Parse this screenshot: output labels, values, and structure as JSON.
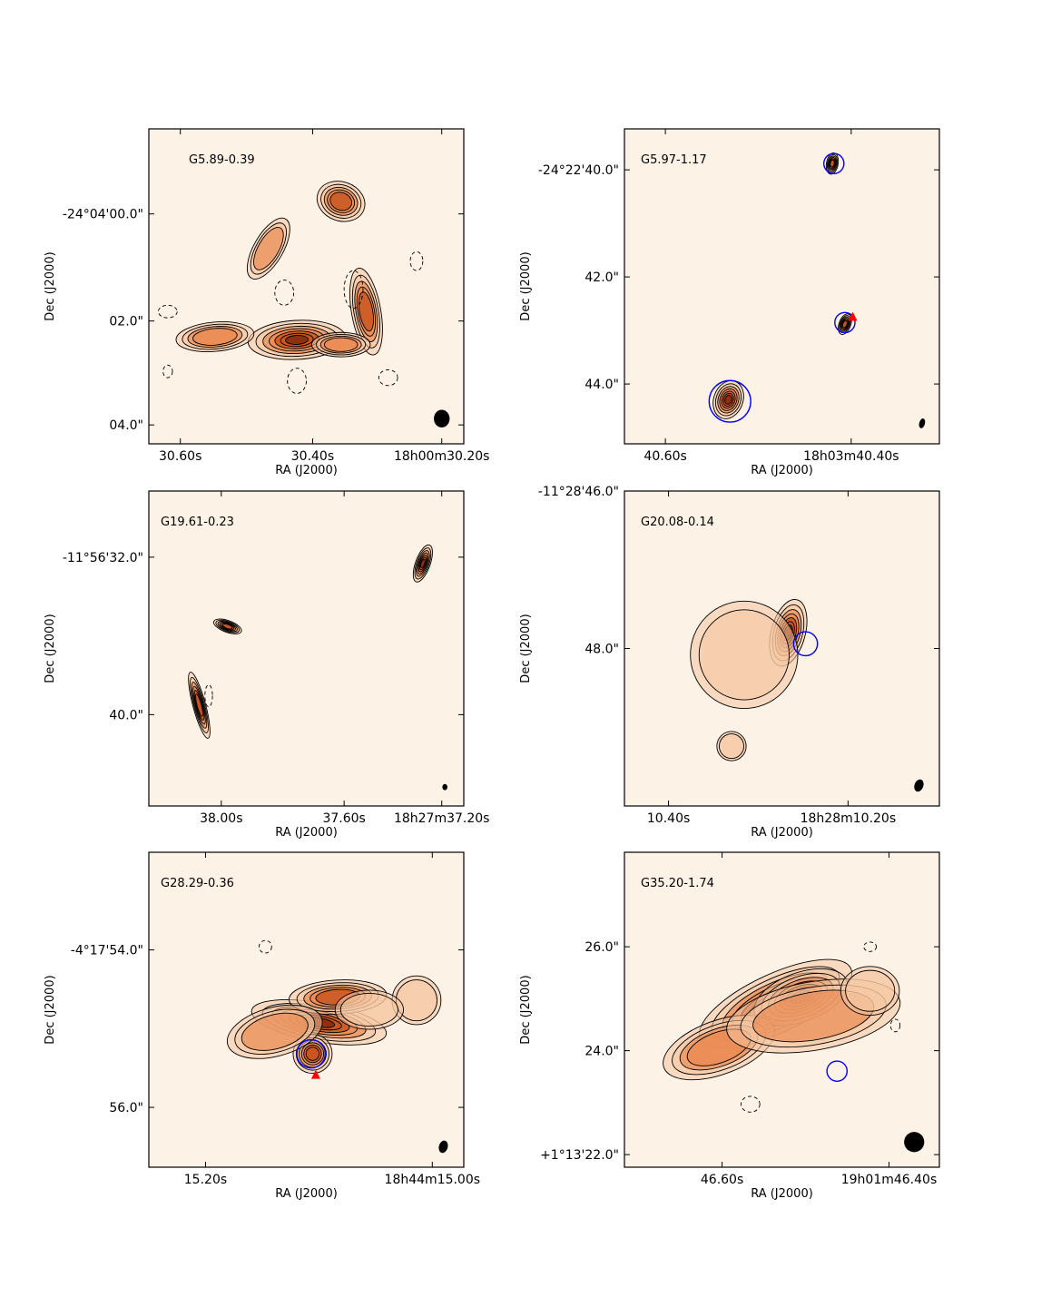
{
  "colors": {
    "background": "#fdf2e6",
    "emission_light": "#f6c7a2",
    "emission_mid": "#e9884f",
    "emission_strong": "#c9541e",
    "emission_peak": "#8a2e0c",
    "contour": "#000000",
    "maser_circle": "#0000ff",
    "marker_triangle": "#ff0000",
    "beam": "#000000"
  },
  "chart_data": [
    {
      "type": "image",
      "name": "G5.89-0.39",
      "xlabel": "RA (J2000)",
      "ylabel": "Dec (J2000)",
      "xticks": [
        "30.60s",
        "30.40s",
        "18h00m30.20s"
      ],
      "yticks": [
        "-24°04'00.0\"",
        "02.0\"",
        "04.0\""
      ],
      "blobs": [
        {
          "u": 0.47,
          "v": 0.67,
          "rx": 0.1,
          "ry": 0.04,
          "rot": -3,
          "peak": 0.95
        },
        {
          "u": 0.21,
          "v": 0.66,
          "rx": 0.08,
          "ry": 0.03,
          "rot": -5,
          "peak": 0.6
        },
        {
          "u": 0.69,
          "v": 0.58,
          "rx": 0.03,
          "ry": 0.09,
          "rot": -10,
          "peak": 0.65
        },
        {
          "u": 0.61,
          "v": 0.685,
          "rx": 0.06,
          "ry": 0.025,
          "rot": 0,
          "peak": 0.5
        },
        {
          "u": 0.61,
          "v": 0.23,
          "rx": 0.05,
          "ry": 0.04,
          "rot": 20,
          "peak": 0.75
        },
        {
          "u": 0.38,
          "v": 0.38,
          "rx": 0.03,
          "ry": 0.07,
          "rot": 30,
          "peak": 0.45
        }
      ],
      "dashed": [
        {
          "u": 0.43,
          "v": 0.52,
          "rx": 0.03,
          "ry": 0.04
        },
        {
          "u": 0.65,
          "v": 0.51,
          "rx": 0.03,
          "ry": 0.06
        },
        {
          "u": 0.47,
          "v": 0.8,
          "rx": 0.03,
          "ry": 0.04
        },
        {
          "u": 0.06,
          "v": 0.58,
          "rx": 0.03,
          "ry": 0.02
        },
        {
          "u": 0.76,
          "v": 0.79,
          "rx": 0.03,
          "ry": 0.025
        },
        {
          "u": 0.85,
          "v": 0.42,
          "rx": 0.02,
          "ry": 0.03
        },
        {
          "u": 0.06,
          "v": 0.77,
          "rx": 0.015,
          "ry": 0.02
        }
      ],
      "circles": [],
      "triangles": [],
      "beam": {
        "u": 0.93,
        "v": 0.92,
        "rx": 0.025,
        "ry": 0.028,
        "rot": 0
      }
    },
    {
      "type": "image",
      "name": "G5.97-1.17",
      "xlabel": "RA (J2000)",
      "ylabel": "Dec (J2000)",
      "xticks": [
        "40.60s",
        "18h03m40.40s"
      ],
      "yticks": [
        "-24°22'40.0\"",
        "42.0\"",
        "44.0\""
      ],
      "blobs": [
        {
          "u": 0.33,
          "v": 0.86,
          "rx": 0.03,
          "ry": 0.04,
          "rot": 20,
          "peak": 1.0
        },
        {
          "u": 0.7,
          "v": 0.62,
          "rx": 0.012,
          "ry": 0.022,
          "rot": 20,
          "peak": 0.8
        },
        {
          "u": 0.66,
          "v": 0.11,
          "rx": 0.012,
          "ry": 0.022,
          "rot": 10,
          "peak": 0.8
        }
      ],
      "dashed": [],
      "circles": [
        {
          "u": 0.335,
          "v": 0.865,
          "r": 0.066
        },
        {
          "u": 0.7,
          "v": 0.615,
          "r": 0.032
        },
        {
          "u": 0.665,
          "v": 0.11,
          "r": 0.032
        }
      ],
      "triangles": [
        {
          "u": 0.725,
          "v": 0.595
        }
      ],
      "beam": {
        "u": 0.945,
        "v": 0.935,
        "rx": 0.009,
        "ry": 0.016,
        "rot": 15
      }
    },
    {
      "type": "image",
      "name": "G19.61-0.23",
      "xlabel": "RA (J2000)",
      "ylabel": "Dec (J2000)",
      "xticks": [
        "38.00s",
        "37.60s",
        "18h27m37.20s"
      ],
      "yticks": [
        "-11°56'32.0\"",
        "40.0\""
      ],
      "blobs": [
        {
          "u": 0.87,
          "v": 0.23,
          "rx": 0.015,
          "ry": 0.04,
          "rot": 20,
          "peak": 0.95
        },
        {
          "u": 0.25,
          "v": 0.43,
          "rx": 0.03,
          "ry": 0.012,
          "rot": 20,
          "peak": 0.9
        },
        {
          "u": 0.16,
          "v": 0.68,
          "rx": 0.013,
          "ry": 0.07,
          "rot": -15,
          "peak": 0.8
        }
      ],
      "dashed": [
        {
          "u": 0.19,
          "v": 0.65,
          "rx": 0.012,
          "ry": 0.035
        }
      ],
      "circles": [],
      "triangles": [],
      "beam": {
        "u": 0.94,
        "v": 0.94,
        "rx": 0.008,
        "ry": 0.01,
        "rot": 0
      }
    },
    {
      "type": "image",
      "name": "G20.08-0.14",
      "xlabel": "RA (J2000)",
      "ylabel": "Dec (J2000)",
      "xticks": [
        "10.40s",
        "18h28m10.20s"
      ],
      "yticks": [
        "-11°28'46.0\"",
        "48.0\""
      ],
      "blobs": [
        {
          "u": 0.52,
          "v": 0.45,
          "rx": 0.035,
          "ry": 0.07,
          "rot": 15,
          "peak": 1.0
        },
        {
          "u": 0.38,
          "v": 0.52,
          "rx": 0.11,
          "ry": 0.11,
          "rot": 0,
          "peak": 0.3
        },
        {
          "u": 0.34,
          "v": 0.81,
          "rx": 0.03,
          "ry": 0.03,
          "rot": 0,
          "peak": 0.15
        }
      ],
      "dashed": [],
      "circles": [
        {
          "u": 0.575,
          "v": 0.485,
          "r": 0.038
        }
      ],
      "triangles": [],
      "beam": {
        "u": 0.935,
        "v": 0.935,
        "rx": 0.014,
        "ry": 0.02,
        "rot": 20
      }
    },
    {
      "type": "image",
      "name": "G28.29-0.36",
      "xlabel": "RA (J2000)",
      "ylabel": "Dec (J2000)",
      "xticks": [
        "15.20s",
        "18h44m15.00s"
      ],
      "yticks": [
        "-4°17'54.0\"",
        "56.0\""
      ],
      "blobs": [
        {
          "u": 0.54,
          "v": 0.54,
          "rx": 0.14,
          "ry": 0.04,
          "rot": 10,
          "peak": 1.0
        },
        {
          "u": 0.6,
          "v": 0.46,
          "rx": 0.1,
          "ry": 0.035,
          "rot": -3,
          "peak": 0.7
        },
        {
          "u": 0.52,
          "v": 0.64,
          "rx": 0.04,
          "ry": 0.04,
          "rot": 0,
          "peak": 0.9
        },
        {
          "u": 0.4,
          "v": 0.57,
          "rx": 0.1,
          "ry": 0.05,
          "rot": -15,
          "peak": 0.4
        },
        {
          "u": 0.85,
          "v": 0.47,
          "rx": 0.05,
          "ry": 0.05,
          "rot": 0,
          "peak": 0.3
        },
        {
          "u": 0.7,
          "v": 0.5,
          "rx": 0.07,
          "ry": 0.04,
          "rot": 0,
          "peak": 0.3
        }
      ],
      "dashed": [
        {
          "u": 0.37,
          "v": 0.3,
          "rx": 0.02,
          "ry": 0.02
        }
      ],
      "circles": [
        {
          "u": 0.515,
          "v": 0.64,
          "r": 0.045
        }
      ],
      "triangles": [
        {
          "u": 0.53,
          "v": 0.705
        }
      ],
      "beam": {
        "u": 0.935,
        "v": 0.935,
        "rx": 0.014,
        "ry": 0.02,
        "rot": 15
      }
    },
    {
      "type": "image",
      "name": "G35.20-1.74",
      "xlabel": "RA (J2000)",
      "ylabel": "Dec (J2000)",
      "xticks": [
        "46.60s",
        "19h01m46.40s"
      ],
      "yticks": [
        "26.0\"",
        "24.0\"",
        "+1°13'22.0\""
      ],
      "blobs": [
        {
          "u": 0.48,
          "v": 0.48,
          "rx": 0.17,
          "ry": 0.06,
          "rot": -25,
          "peak": 0.9
        },
        {
          "u": 0.56,
          "v": 0.46,
          "rx": 0.1,
          "ry": 0.05,
          "rot": -20,
          "peak": 1.0
        },
        {
          "u": 0.3,
          "v": 0.62,
          "rx": 0.12,
          "ry": 0.055,
          "rot": -20,
          "peak": 0.5
        },
        {
          "u": 0.6,
          "v": 0.52,
          "rx": 0.18,
          "ry": 0.07,
          "rot": -10,
          "peak": 0.45
        },
        {
          "u": 0.78,
          "v": 0.44,
          "rx": 0.06,
          "ry": 0.05,
          "rot": 0,
          "peak": 0.3
        }
      ],
      "dashed": [
        {
          "u": 0.4,
          "v": 0.8,
          "rx": 0.03,
          "ry": 0.025
        },
        {
          "u": 0.78,
          "v": 0.3,
          "rx": 0.02,
          "ry": 0.015
        },
        {
          "u": 0.86,
          "v": 0.55,
          "rx": 0.015,
          "ry": 0.02
        }
      ],
      "circles": [
        {
          "u": 0.675,
          "v": 0.695,
          "r": 0.032
        }
      ],
      "triangles": [],
      "beam": {
        "u": 0.92,
        "v": 0.92,
        "rx": 0.032,
        "ry": 0.032,
        "rot": 0
      }
    }
  ]
}
